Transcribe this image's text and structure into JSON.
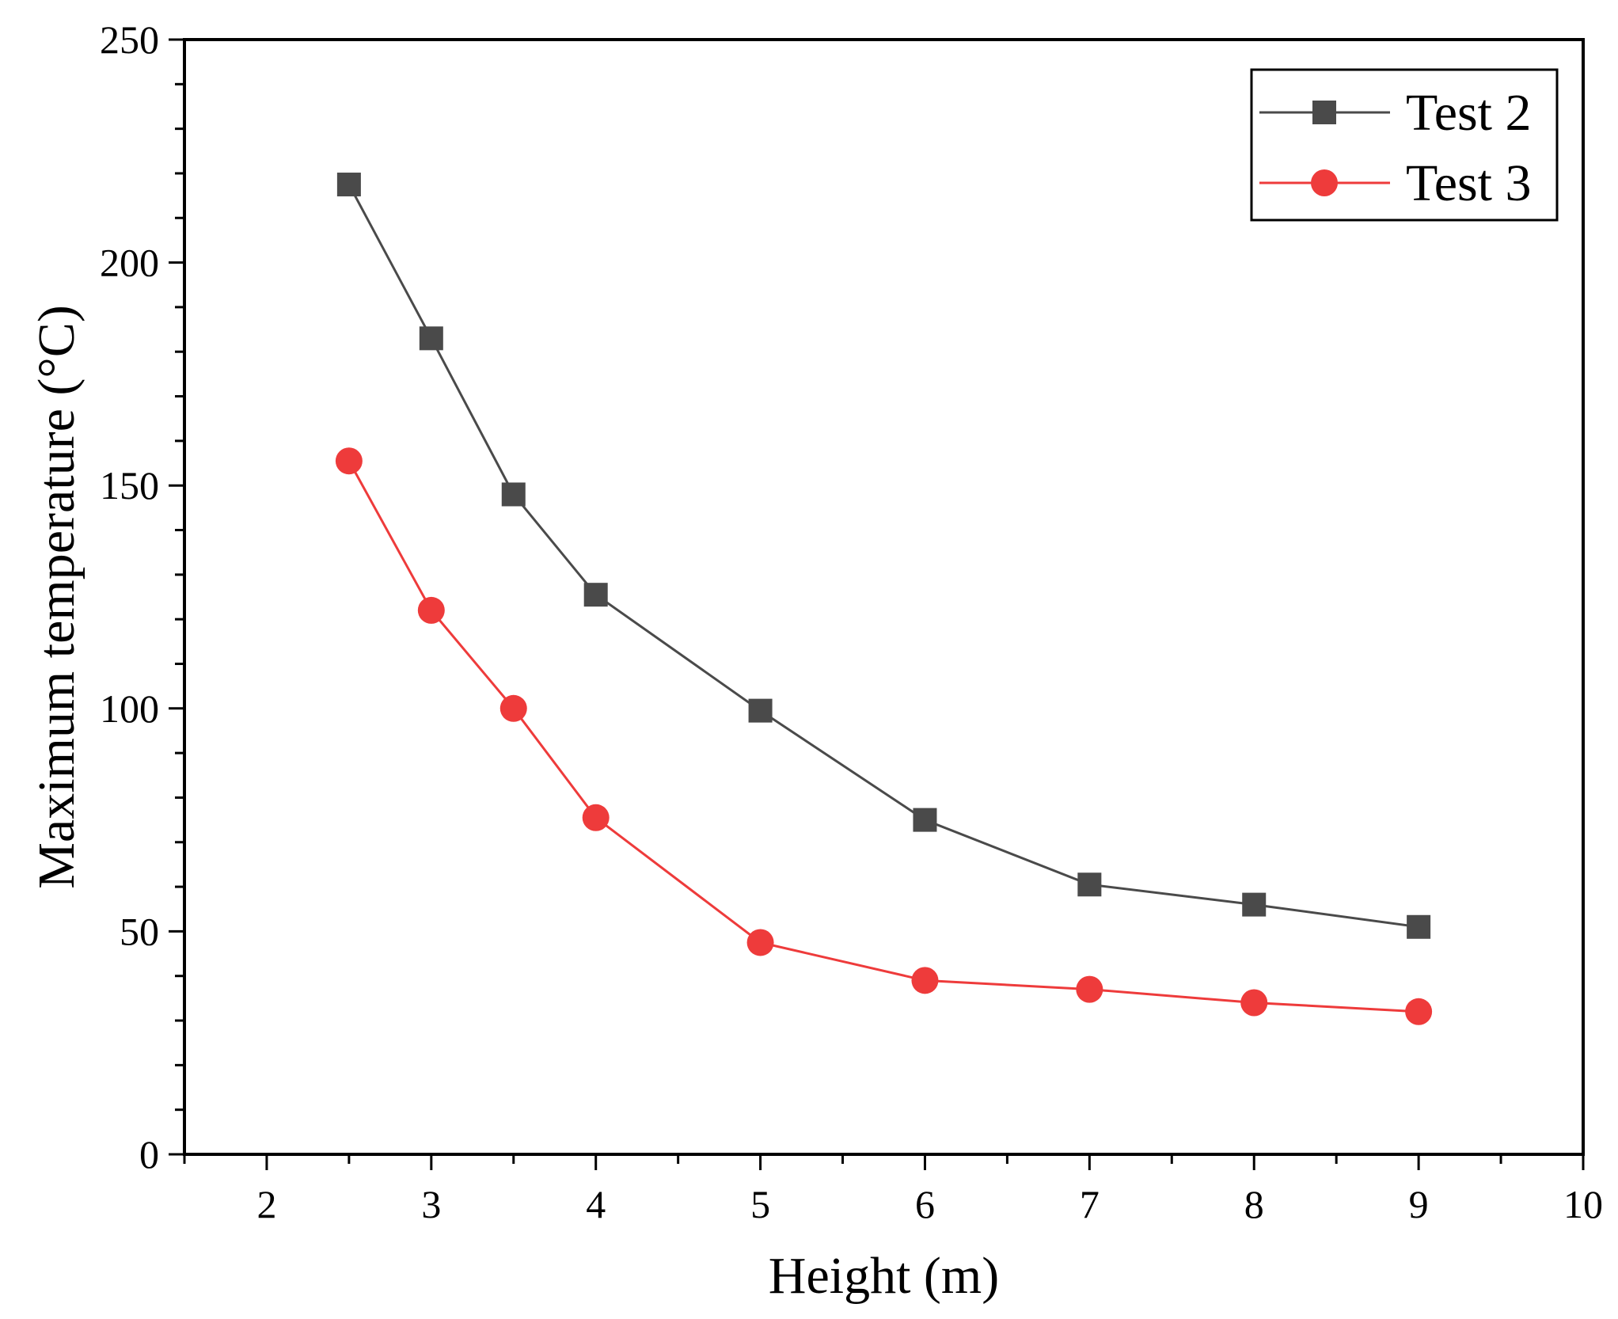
{
  "chart_data": {
    "type": "line",
    "title": "",
    "xlabel": "Height (m)",
    "ylabel": "Maximum temperature (°C)",
    "xlim": [
      1.5,
      10
    ],
    "ylim": [
      0,
      250
    ],
    "x_major_ticks": [
      2,
      3,
      4,
      5,
      6,
      7,
      8,
      9,
      10
    ],
    "y_major_ticks": [
      0,
      50,
      100,
      150,
      200,
      250
    ],
    "x_tick_labels": [
      "2",
      "3",
      "4",
      "5",
      "6",
      "7",
      "8",
      "9",
      "10"
    ],
    "y_tick_labels": [
      "0",
      "50",
      "100",
      "150",
      "200",
      "250"
    ],
    "grid": false,
    "legend_position": "top-right",
    "series": [
      {
        "name": "Test 2",
        "marker": "square",
        "color": "#4a4a4a",
        "line_color": "#4a4a4a",
        "x": [
          2.5,
          3,
          3.5,
          4,
          5,
          6,
          7,
          8,
          9
        ],
        "values": [
          217.5,
          183,
          148,
          125.5,
          99.5,
          75,
          60.5,
          56,
          51
        ]
      },
      {
        "name": "Test 3",
        "marker": "circle",
        "color": "#ee3b3b",
        "line_color": "#ee3b3b",
        "x": [
          2.5,
          3,
          3.5,
          4,
          5,
          6,
          7,
          8,
          9
        ],
        "values": [
          155.5,
          122,
          100,
          75.5,
          47.5,
          39,
          37,
          34,
          32
        ]
      }
    ]
  }
}
